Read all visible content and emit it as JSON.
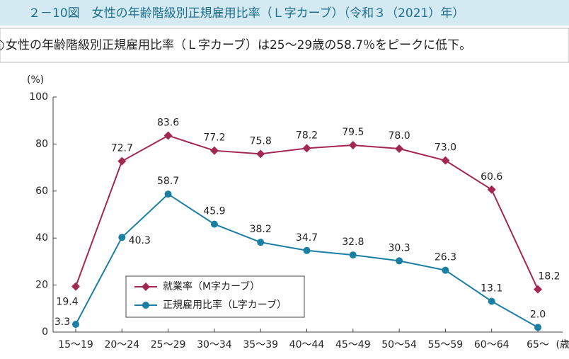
{
  "chart_data": {
    "type": "line",
    "title": "２－10図　女性の年齢階級別正規雇用比率（Ｌ字カーブ）（令和３（2021）年）",
    "subtitle": "女性の年齢階級別正規雇用比率（Ｌ字カーブ）は25～29歳の58.7％をピークに低下。",
    "y_label": "(%)",
    "x_label": "(歳)",
    "categories": [
      "15～19",
      "20～24",
      "25～29",
      "30～34",
      "35～39",
      "40～44",
      "45～49",
      "50～54",
      "55～59",
      "60～64",
      "65～"
    ],
    "series": [
      {
        "name": "就業率（M字カーブ）",
        "color": "#a3284f",
        "marker": "diamond",
        "values": [
          19.4,
          72.7,
          83.6,
          77.2,
          75.8,
          78.2,
          79.5,
          78.0,
          73.0,
          60.6,
          18.2
        ],
        "value_labels": [
          "19.4",
          "72.7",
          "83.6",
          "77.2",
          "75.8",
          "78.2",
          "79.5",
          "78.0",
          "73.0",
          "60.6",
          "18.2"
        ]
      },
      {
        "name": "正規雇用比率（L字カーブ）",
        "color": "#1b7fa3",
        "marker": "circle",
        "values": [
          3.3,
          40.3,
          58.7,
          45.9,
          38.2,
          34.7,
          32.8,
          30.3,
          26.3,
          13.1,
          2.0
        ],
        "value_labels": [
          "3.3",
          "40.3",
          "58.7",
          "45.9",
          "38.2",
          "34.7",
          "32.8",
          "30.3",
          "26.3",
          "13.1",
          "2.0"
        ]
      }
    ],
    "ylim": [
      0,
      100
    ],
    "yticks": [
      0,
      20,
      40,
      60,
      80,
      100
    ],
    "grid": false
  }
}
